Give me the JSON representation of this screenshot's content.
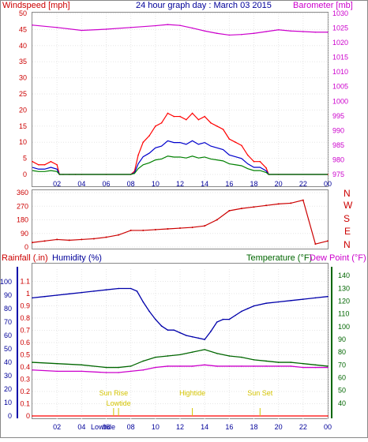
{
  "header": {
    "left_title": "Windspeed [mph]",
    "center_title": "24 hour graph day : March 03 2015",
    "right_title": "Barometer [mb]"
  },
  "colors": {
    "wind": "#ff0000",
    "gust": "#ff0000",
    "wind_avg": "#0000cc",
    "wind_low": "#008000",
    "barometer": "#cc00cc",
    "direction": "#cc0000",
    "humidity": "#0000aa",
    "temperature": "#006600",
    "dewpoint": "#cc00cc",
    "rain": "#ff0000",
    "text_red": "#cc0000",
    "text_blue": "#000099",
    "text_green": "#006600",
    "text_mag": "#cc00cc",
    "event": "#d4c400"
  },
  "panel2": {
    "direction_labels": [
      "N",
      "W",
      "S",
      "E",
      "N"
    ]
  },
  "panel3": {
    "left_title": "Rainfall (.in)",
    "left_title2": "Humidity (%)",
    "right_title": "Temperature (°F)",
    "right_title2": "Dew Point (°F)",
    "events": [
      {
        "label": "Sun Rise",
        "hour": 6.6
      },
      {
        "label": "Lowtide",
        "hour": 7.0
      },
      {
        "label": "Hightide",
        "hour": 13.0
      },
      {
        "label": "Sun Set",
        "hour": 18.5
      }
    ],
    "bottom_extra": "Lowtide"
  },
  "chart_data": [
    {
      "type": "line",
      "title": "24 hour graph day : March 03 2015",
      "x_ticks": [
        "02",
        "04",
        "06",
        "08",
        "10",
        "12",
        "14",
        "16",
        "18",
        "20",
        "22",
        "00"
      ],
      "left_axis": {
        "label": "Windspeed [mph]",
        "ylim": [
          0,
          50
        ],
        "ticks": [
          0,
          5,
          10,
          15,
          20,
          25,
          30,
          35,
          40,
          45,
          50
        ]
      },
      "right_axis": {
        "label": "Barometer [mb]",
        "ylim": [
          975,
          1030
        ],
        "ticks": [
          975,
          980,
          985,
          990,
          995,
          1000,
          1005,
          1010,
          1015,
          1020,
          1025,
          1030
        ]
      },
      "series": [
        {
          "name": "Windspeed [mph]",
          "axis": "left",
          "x": [
            0,
            0.5,
            1,
            1.5,
            2,
            2.2,
            2.5,
            3,
            3.5,
            4,
            6,
            8,
            8.3,
            8.6,
            9,
            9.5,
            10,
            10.5,
            11,
            11.5,
            12,
            12.5,
            13,
            13.5,
            14,
            14.5,
            15,
            15.5,
            16,
            16.5,
            17,
            17.5,
            18,
            18.5,
            19,
            19.2,
            20,
            24
          ],
          "y": [
            4,
            3,
            3,
            4,
            3,
            0,
            0,
            0,
            0,
            0,
            0,
            0,
            1,
            6,
            10,
            12,
            15,
            16,
            19,
            18,
            18,
            17,
            19,
            17,
            18,
            16,
            15,
            14,
            11,
            10,
            9,
            6,
            4,
            4,
            2,
            0,
            0,
            0
          ]
        },
        {
          "name": "Barometer [mb]",
          "axis": "right",
          "x": [
            0,
            2,
            4,
            6,
            8,
            10,
            11,
            12,
            13,
            14,
            15,
            16,
            17,
            18,
            19,
            20,
            21,
            22,
            23,
            24
          ],
          "y": [
            1026,
            1025.2,
            1024.2,
            1024.6,
            1025.2,
            1025.8,
            1026.2,
            1025.9,
            1025,
            1024,
            1023.2,
            1022.6,
            1022.8,
            1023.2,
            1023.8,
            1024.4,
            1024,
            1023.8,
            1023.6,
            1023.6
          ]
        }
      ]
    },
    {
      "type": "scatter",
      "title": "",
      "y_ticks": [
        0,
        90,
        180,
        270,
        360
      ],
      "ylim": [
        0,
        360
      ],
      "series": [
        {
          "name": "",
          "x": [
            0,
            1,
            2,
            3,
            4,
            5,
            6,
            7,
            8,
            9,
            10,
            11,
            12,
            13,
            14,
            15,
            16,
            17,
            18,
            19,
            20,
            21,
            22,
            23,
            24
          ],
          "y": [
            30,
            40,
            50,
            45,
            50,
            55,
            65,
            80,
            110,
            110,
            115,
            120,
            125,
            130,
            140,
            180,
            240,
            255,
            265,
            275,
            285,
            290,
            310,
            20,
            40
          ]
        }
      ]
    },
    {
      "type": "line",
      "title": "",
      "x_ticks": [
        "02",
        "04",
        "06",
        "08",
        "10",
        "12",
        "14",
        "16",
        "18",
        "20",
        "22",
        "00"
      ],
      "left_axis": {
        "label": "Rainfall (.in) / Humidity (%)",
        "ylim": [
          0,
          1.2
        ],
        "ticks": [
          0,
          0.1,
          0.2,
          0.3,
          0.4,
          0.5,
          0.6,
          0.7,
          0.8,
          0.9,
          1,
          1.1
        ],
        "humidity_ticks": [
          0,
          10,
          20,
          30,
          40,
          50,
          60,
          70,
          80,
          90,
          100
        ]
      },
      "right_axis": {
        "label": "Temperature (°F) / Dew Point (°F)",
        "ylim": [
          30,
          145
        ],
        "ticks": [
          40,
          50,
          60,
          70,
          80,
          90,
          100,
          110,
          120,
          130,
          140
        ]
      },
      "series": [
        {
          "name": "Humidity (%)",
          "axis": "humidity",
          "x": [
            0,
            1,
            2,
            3,
            4,
            5,
            6,
            7,
            8,
            8.5,
            9,
            9.5,
            10,
            10.5,
            11,
            11.5,
            12,
            12.5,
            13,
            13.5,
            14,
            14.5,
            15,
            15.5,
            16,
            16.5,
            17,
            17.5,
            18,
            19,
            20,
            21,
            22,
            23,
            24
          ],
          "y": [
            88,
            89,
            90,
            91,
            92,
            93,
            94,
            95,
            95,
            93,
            85,
            78,
            72,
            67,
            64,
            64,
            62,
            60,
            59,
            58,
            57,
            63,
            70,
            72,
            72,
            75,
            78,
            80,
            82,
            84,
            85,
            86,
            87,
            88,
            89
          ]
        },
        {
          "name": "Temperature (°F)",
          "axis": "right",
          "x": [
            0,
            2,
            4,
            6,
            7,
            8,
            9,
            10,
            11,
            12,
            13,
            14,
            15,
            16,
            17,
            18,
            19,
            20,
            21,
            22,
            23,
            24
          ],
          "y": [
            72,
            71,
            70,
            68,
            68,
            69,
            73,
            76,
            77,
            78,
            80,
            82,
            79,
            77,
            76,
            74,
            73,
            72,
            72,
            71,
            70,
            69
          ]
        },
        {
          "name": "Dew Point (°F)",
          "axis": "right",
          "x": [
            0,
            2,
            4,
            6,
            7,
            8,
            9,
            10,
            11,
            12,
            13,
            14,
            15,
            16,
            17,
            18,
            19,
            20,
            21,
            22,
            23,
            24
          ],
          "y": [
            66,
            65,
            65,
            64,
            64,
            65,
            66,
            68,
            69,
            69,
            69,
            70,
            69,
            69,
            69,
            69,
            69,
            69,
            69,
            68,
            68,
            68
          ]
        },
        {
          "name": "Rainfall (.in)",
          "axis": "left",
          "x": [
            0,
            24
          ],
          "y": [
            0,
            0
          ]
        }
      ]
    }
  ]
}
